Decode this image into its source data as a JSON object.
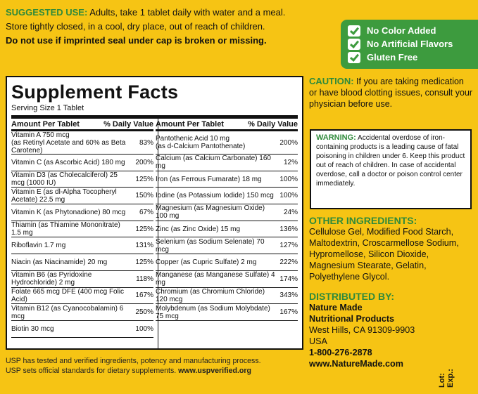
{
  "suggested_use": {
    "label": "SUGGESTED USE:",
    "text": " Adults, take 1 tablet daily with water and a meal.",
    "line2": "Store tightly closed, in a cool, dry place, out of reach of children.",
    "line3": "Do not use if imprinted seal under cap is broken or missing."
  },
  "badges": [
    "No Color Added",
    "No Artificial Flavors",
    "Gluten Free"
  ],
  "facts": {
    "title": "Supplement Facts",
    "serving": "Serving Size 1 Tablet",
    "col_header_left": "Amount Per Tablet",
    "col_header_right": "% Daily Value",
    "left": [
      {
        "name": "Vitamin A 750 mcg",
        "sub": "(as Retinyl Acetate and 60% as Beta Carotene)",
        "dv": "83%"
      },
      {
        "name": "Vitamin C (as Ascorbic Acid) 180 mg",
        "dv": "200%"
      },
      {
        "name": "Vitamin D3 (as Cholecalciferol) 25 mcg (1000 IU)",
        "dv": "125%"
      },
      {
        "name": "Vitamin E (as dl-Alpha Tocopheryl Acetate) 22.5 mg",
        "dv": "150%"
      },
      {
        "name": "Vitamin K (as Phytonadione) 80 mcg",
        "dv": "67%"
      },
      {
        "name": "Thiamin (as Thiamine Mononitrate) 1.5 mg",
        "dv": "125%"
      },
      {
        "name": "Riboflavin 1.7 mg",
        "dv": "131%"
      },
      {
        "name": "Niacin (as Niacinamide) 20 mg",
        "dv": "125%"
      },
      {
        "name": "Vitamin B6 (as Pyridoxine Hydrochloride) 2 mg",
        "dv": "118%"
      },
      {
        "name": "Folate 665 mcg DFE (400 mcg Folic Acid)",
        "dv": "167%"
      },
      {
        "name": "Vitamin B12 (as Cyanocobalamin) 6 mcg",
        "dv": "250%"
      },
      {
        "name": "Biotin 30 mcg",
        "dv": "100%"
      }
    ],
    "right": [
      {
        "name": "Pantothenic Acid 10 mg",
        "sub": "(as d-Calcium Pantothenate)",
        "dv": "200%"
      },
      {
        "name": "Calcium (as Calcium Carbonate) 160 mg",
        "dv": "12%"
      },
      {
        "name": "Iron (as Ferrous Fumarate) 18 mg",
        "dv": "100%"
      },
      {
        "name": "Iodine (as Potassium Iodide) 150 mcg",
        "dv": "100%"
      },
      {
        "name": "Magnesium (as Magnesium Oxide) 100 mg",
        "dv": "24%"
      },
      {
        "name": "Zinc (as Zinc Oxide) 15 mg",
        "dv": "136%"
      },
      {
        "name": "Selenium (as Sodium Selenate) 70 mcg",
        "dv": "127%"
      },
      {
        "name": "Copper (as Cupric Sulfate) 2 mg",
        "dv": "222%"
      },
      {
        "name": "Manganese (as Manganese Sulfate) 4 mg",
        "dv": "174%"
      },
      {
        "name": "Chromium (as Chromium Chloride) 120 mcg",
        "dv": "343%"
      },
      {
        "name": "Molybdenum (as Sodium Molybdate) 75 mcg",
        "dv": "167%"
      }
    ]
  },
  "usp": {
    "line1": "USP has tested and verified ingredients, potency and manufacturing process.",
    "line2": "USP sets official standards for dietary supplements.",
    "url": " www.uspverified.org"
  },
  "caution": {
    "label": "CAUTION:",
    "text": " If you are taking medication or have blood clotting issues, consult your physician before use."
  },
  "warning": {
    "label": "WARNING:",
    "text": " Accidental overdose of iron-containing products is a leading cause of fatal poisoning in children under 6. Keep this product out of reach of children. In case of accidental overdose, call a doctor or poison control center immediately."
  },
  "other_ingredients": {
    "label": "OTHER INGREDIENTS:",
    "text": "Cellulose Gel, Modified Food Starch, Maltodextrin, Croscarmellose Sodium, Hypromellose, Silicon Dioxide, Magnesium Stearate, Gelatin, Polyethylene Glycol."
  },
  "distributed": {
    "label": "DISTRIBUTED BY:",
    "company1": "Nature Made",
    "company2": "Nutritional Products",
    "city": "West Hills, CA 91309-9903",
    "country": "USA",
    "phone": "1-800-276-2878",
    "web": "www.NatureMade.com"
  },
  "lot_label": "Lot:",
  "exp_label": "Exp.:",
  "colors": {
    "background": "#f6c414",
    "green": "#2f8a3a",
    "badge": "#3d9b3e"
  }
}
